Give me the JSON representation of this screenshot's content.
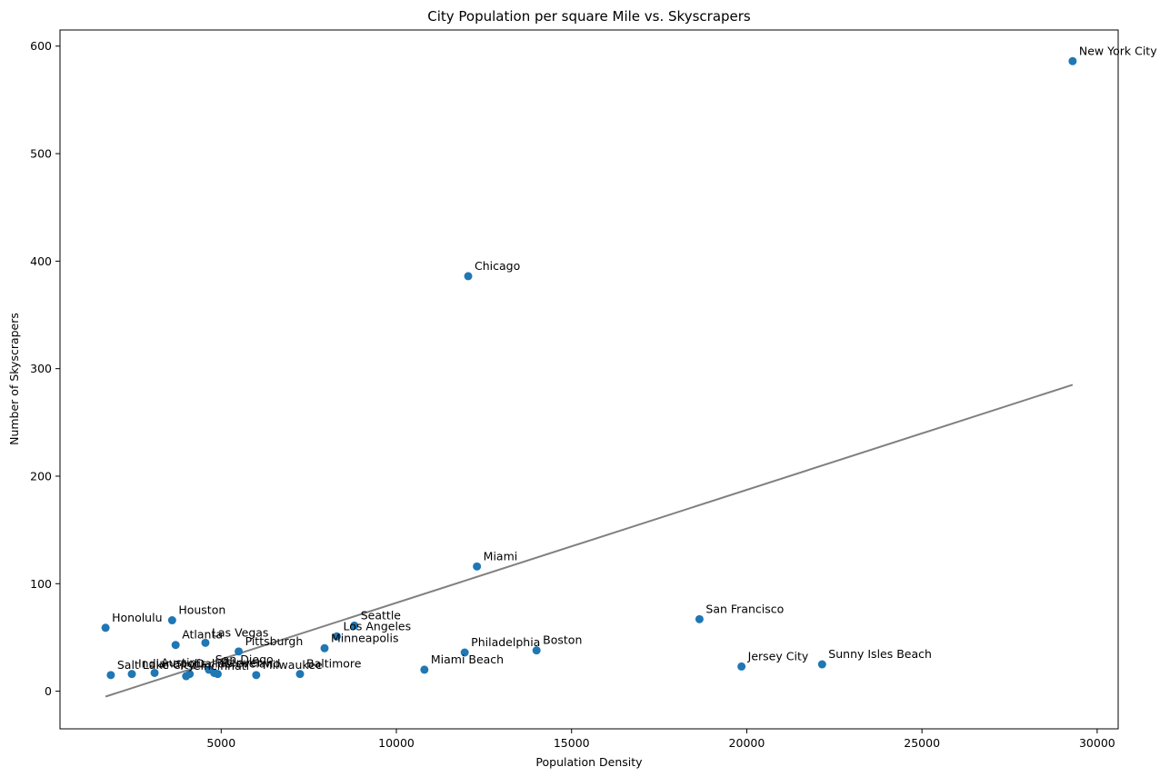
{
  "chart_data": {
    "type": "scatter",
    "title": "City Population per square Mile vs. Skyscrapers",
    "xlabel": "Population Density",
    "ylabel": "Number of Skyscrapers",
    "xlim": [
      400,
      30600
    ],
    "ylim": [
      -35,
      615
    ],
    "xticks": [
      5000,
      10000,
      15000,
      20000,
      25000,
      30000
    ],
    "yticks": [
      0,
      100,
      200,
      300,
      400,
      500,
      600
    ],
    "grid": false,
    "point_color": "#1f77b4",
    "trend_color": "#808080",
    "points": [
      {
        "label": "New York City",
        "x": 29300,
        "y": 586
      },
      {
        "label": "Chicago",
        "x": 12050,
        "y": 386
      },
      {
        "label": "Miami",
        "x": 12300,
        "y": 116
      },
      {
        "label": "San Francisco",
        "x": 18650,
        "y": 67
      },
      {
        "label": "Jersey City",
        "x": 19850,
        "y": 23
      },
      {
        "label": "Sunny Isles Beach",
        "x": 22150,
        "y": 25
      },
      {
        "label": "Boston",
        "x": 14000,
        "y": 38
      },
      {
        "label": "Philadelphia",
        "x": 11950,
        "y": 36
      },
      {
        "label": "Miami Beach",
        "x": 10800,
        "y": 20
      },
      {
        "label": "Baltimore",
        "x": 7250,
        "y": 16
      },
      {
        "label": "Seattle",
        "x": 8800,
        "y": 61
      },
      {
        "label": "Los Angeles",
        "x": 8300,
        "y": 51
      },
      {
        "label": "Minneapolis",
        "x": 7950,
        "y": 40
      },
      {
        "label": "Pittsburgh",
        "x": 5500,
        "y": 37
      },
      {
        "label": "Las Vegas",
        "x": 4550,
        "y": 45
      },
      {
        "label": "Atlanta",
        "x": 3700,
        "y": 43
      },
      {
        "label": "Houston",
        "x": 3600,
        "y": 66
      },
      {
        "label": "Honolulu",
        "x": 1700,
        "y": 59
      },
      {
        "label": "Milwaukee",
        "x": 6000,
        "y": 15
      },
      {
        "label": "Cleveland",
        "x": 4900,
        "y": 16
      },
      {
        "label": "Denver",
        "x": 4800,
        "y": 17
      },
      {
        "label": "San Diego",
        "x": 4650,
        "y": 20
      },
      {
        "label": "Dallas",
        "x": 4100,
        "y": 16
      },
      {
        "label": "Cincinnati",
        "x": 4000,
        "y": 14
      },
      {
        "label": "Austin",
        "x": 3100,
        "y": 17
      },
      {
        "label": "Indianapolis",
        "x": 2450,
        "y": 16
      },
      {
        "label": "Salt Lake City",
        "x": 1850,
        "y": 15
      }
    ],
    "trendline": {
      "x": [
        1700,
        29300
      ],
      "y": [
        -5,
        285
      ]
    }
  }
}
